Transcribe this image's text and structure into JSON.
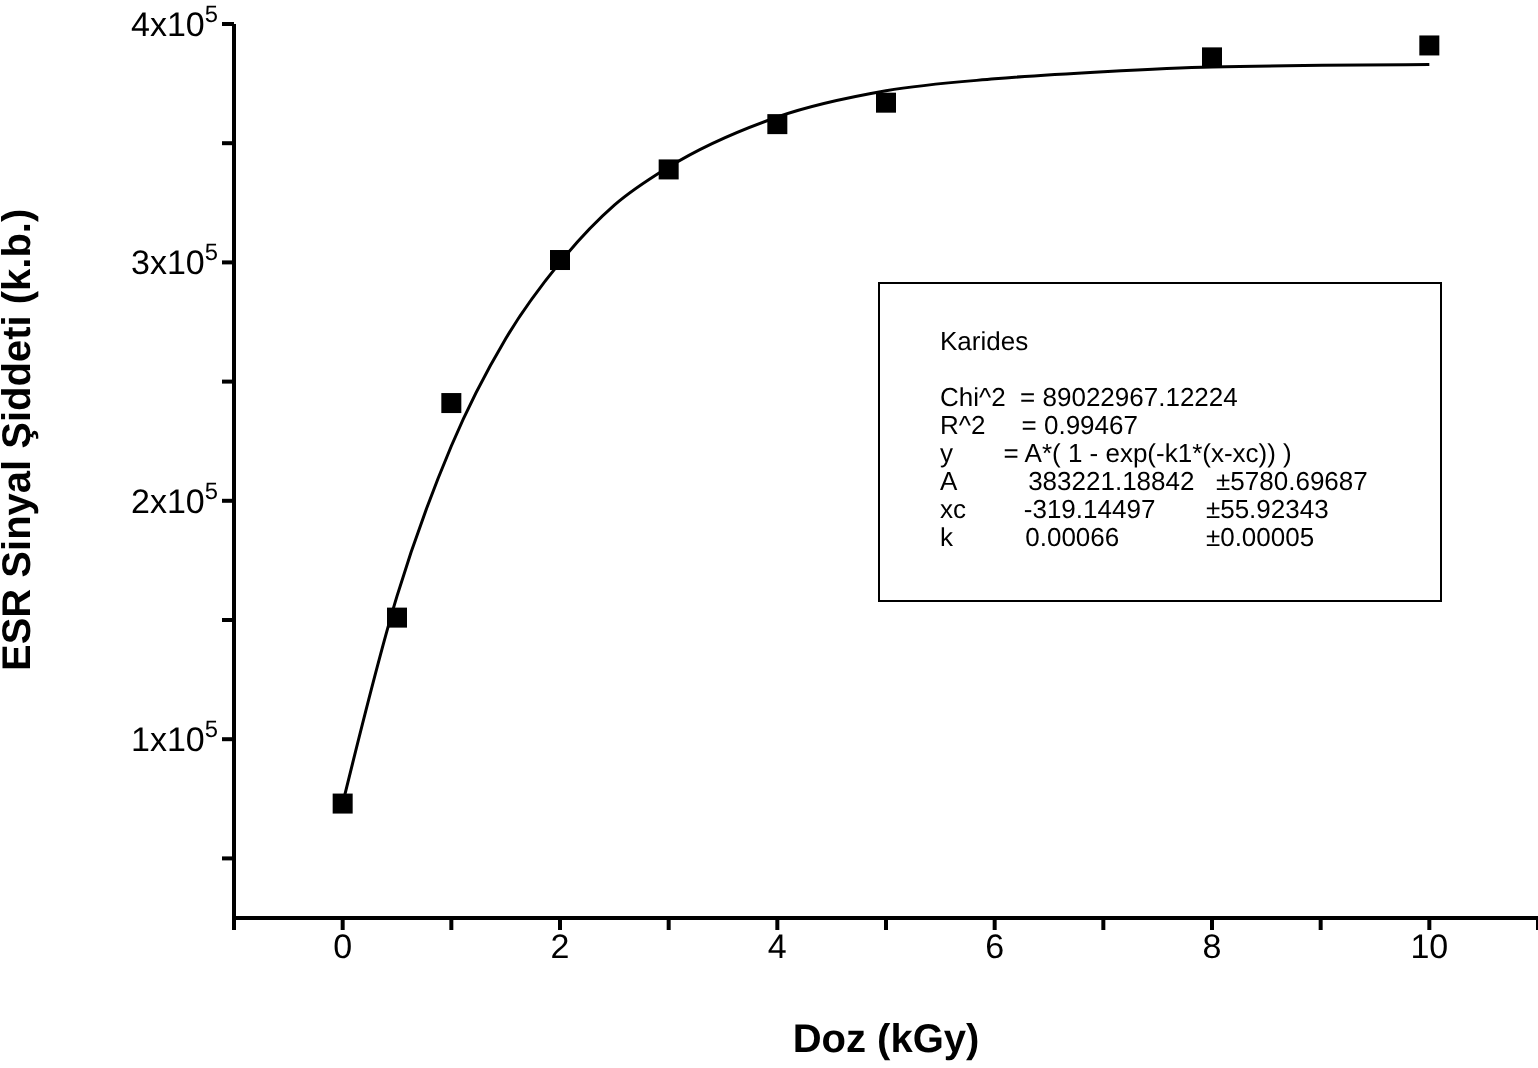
{
  "chart_data": {
    "type": "scatter",
    "xlabel": "Doz (kGy)",
    "ylabel": "ESR Sinyal Şiddeti (k.b.)",
    "xlim": [
      -1,
      11
    ],
    "xticks": [
      {
        "value": -1,
        "label": null
      },
      0,
      {
        "value": 1,
        "label": null
      },
      2,
      {
        "value": 3,
        "label": null
      },
      4,
      {
        "value": 5,
        "label": null
      },
      6,
      {
        "value": 7,
        "label": null
      },
      8,
      {
        "value": 9,
        "label": null
      },
      10,
      {
        "value": 11,
        "label": null
      }
    ],
    "ylim": [
      25000,
      400000
    ],
    "yticks": [
      {
        "value": 50000,
        "label": null
      },
      {
        "value": 100000,
        "label": "1x10$^{5}$"
      },
      {
        "value": 150000,
        "label": null
      },
      {
        "value": 200000,
        "label": "2x10$^{5}$"
      },
      {
        "value": 250000,
        "label": null
      },
      {
        "value": 300000,
        "label": "3x10$^{5}$"
      },
      {
        "value": 350000,
        "label": null
      },
      {
        "value": 400000,
        "label": "4x10$^{5}$"
      }
    ],
    "line_style": "solid",
    "series": [
      {
        "marker": "square",
        "color": "#000000",
        "x": [
          0,
          0.5,
          1,
          2,
          3,
          4,
          5,
          8,
          10
        ],
        "values": [
          73000,
          151000,
          241000,
          301000,
          339000,
          358000,
          367000,
          386000,
          391000
        ]
      },
      {
        "type": "line",
        "marker": "none",
        "color": "#000000",
        "x": [
          0,
          0.5,
          1,
          1.5,
          2,
          2.5,
          3,
          4,
          5,
          6,
          7,
          8,
          10
        ],
        "values": [
          73000,
          160000,
          223000,
          268000,
          300000,
          324000,
          340000,
          361000,
          372000,
          377000,
          380000,
          382000,
          383000
        ]
      }
    ],
    "annotations": [
      "Karides",
      "Chi^2  = 89022967.12224",
      "R^2     = 0.99467",
      "y       = A*( 1 - exp(-k1*(x-xc)) )",
      "A          383221.18842   ±5780.69687",
      "xc        -319.14497       ±55.92343",
      "k          0.00066            ±0.00005"
    ]
  }
}
